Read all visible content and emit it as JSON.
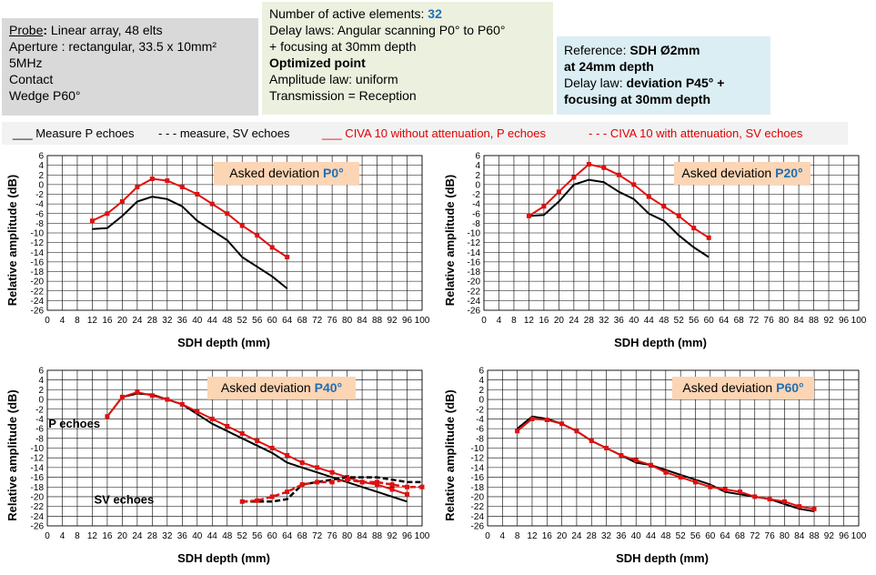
{
  "probe": {
    "label": "Probe",
    "colon": ": ",
    "type": "Linear array, 48 elts",
    "aperture": "Aperture : rectangular, 33.5 x 10mm²",
    "freq": "5MHz",
    "contact": "Contact",
    "wedge": "Wedge P60°"
  },
  "delay": {
    "active_label": "Number of active elements: ",
    "active_value": "32",
    "laws_l1": "Delay laws: Angular scanning P0° to P60°",
    "laws_l2": "+ focusing at 30mm depth",
    "optimized": "Optimized  point",
    "amp_law": "Amplitude law: uniform",
    "transmission": "Transmission = Reception"
  },
  "reference": {
    "prefix": "Reference: ",
    "sdh_l1": "SDH Ø2mm",
    "sdh_l2": "at 24mm depth",
    "delay_prefix": "Delay law: ",
    "delay_l1": "deviation P45° +",
    "delay_l2": "focusing at 30mm depth"
  },
  "legend": {
    "measure_p": "___ Measure P echoes",
    "measure_sv": "- - - measure, SV echoes",
    "civa_p": "___ CIVA 10 without attenuation, P echoes",
    "civa_sv": "- - - CIVA 10 with attenuation, SV echoes"
  },
  "colors": {
    "measure": "#000000",
    "civa": "#e01010",
    "asked_bg": "#fcd5b5",
    "asked_value": "#1f6fb5"
  },
  "chart_data": [
    {
      "type": "line",
      "xlabel": "SDH depth (mm)",
      "ylabel": "Relative amplitude (dB)",
      "xlim": [
        0,
        100
      ],
      "ylim": [
        -26,
        6
      ],
      "x_ticks": [
        0,
        4,
        8,
        12,
        16,
        20,
        24,
        28,
        32,
        36,
        40,
        44,
        48,
        52,
        56,
        60,
        64,
        68,
        72,
        76,
        80,
        84,
        88,
        92,
        96,
        100
      ],
      "y_ticks": [
        6,
        4,
        2,
        0,
        -2,
        -4,
        -6,
        -8,
        -10,
        -12,
        -14,
        -16,
        -18,
        -20,
        -22,
        -24,
        -26
      ],
      "grid": true,
      "annotation_prefix": "Asked deviation ",
      "annotation_value": "P0°",
      "series": [
        {
          "name": "Measure P echoes",
          "style": "solid-black",
          "points": [
            [
              12,
              -9.2
            ],
            [
              16,
              -9
            ],
            [
              20,
              -6.5
            ],
            [
              24,
              -3.5
            ],
            [
              28,
              -2.5
            ],
            [
              32,
              -3
            ],
            [
              36,
              -4.5
            ],
            [
              40,
              -7.5
            ],
            [
              44,
              -9.5
            ],
            [
              48,
              -11.5
            ],
            [
              52,
              -15
            ],
            [
              56,
              -17
            ],
            [
              60,
              -19
            ],
            [
              64,
              -21.5
            ]
          ]
        },
        {
          "name": "CIVA 10 without attenuation, P echoes",
          "style": "solid-red-markers",
          "points": [
            [
              12,
              -7.5
            ],
            [
              16,
              -6
            ],
            [
              20,
              -3.5
            ],
            [
              24,
              -0.5
            ],
            [
              28,
              1.2
            ],
            [
              32,
              0.8
            ],
            [
              36,
              -0.5
            ],
            [
              40,
              -2
            ],
            [
              44,
              -4
            ],
            [
              48,
              -6
            ],
            [
              52,
              -8.5
            ],
            [
              56,
              -10.5
            ],
            [
              60,
              -13
            ],
            [
              64,
              -15
            ]
          ]
        }
      ]
    },
    {
      "type": "line",
      "xlabel": "SDH depth (mm)",
      "ylabel": "Relative amplitude (dB)",
      "xlim": [
        0,
        100
      ],
      "ylim": [
        -26,
        6
      ],
      "x_ticks": [
        0,
        4,
        8,
        12,
        16,
        20,
        24,
        28,
        32,
        36,
        40,
        44,
        48,
        52,
        56,
        60,
        64,
        68,
        72,
        76,
        80,
        84,
        88,
        92,
        96,
        100
      ],
      "y_ticks": [
        6,
        4,
        2,
        0,
        -2,
        -4,
        -6,
        -8,
        -10,
        -12,
        -14,
        -16,
        -18,
        -20,
        -22,
        -24,
        -26
      ],
      "grid": true,
      "annotation_prefix": "Asked deviation ",
      "annotation_value": "P20°",
      "series": [
        {
          "name": "Measure P echoes",
          "style": "solid-black",
          "points": [
            [
              12,
              -6.5
            ],
            [
              16,
              -6.3
            ],
            [
              20,
              -3.5
            ],
            [
              24,
              0
            ],
            [
              28,
              1
            ],
            [
              32,
              0.5
            ],
            [
              36,
              -1.5
            ],
            [
              40,
              -3
            ],
            [
              44,
              -6
            ],
            [
              48,
              -7.5
            ],
            [
              52,
              -10.5
            ],
            [
              56,
              -13
            ],
            [
              60,
              -15
            ]
          ]
        },
        {
          "name": "CIVA 10 without attenuation, P echoes",
          "style": "solid-red-markers",
          "points": [
            [
              12,
              -6.5
            ],
            [
              16,
              -4.5
            ],
            [
              20,
              -1.5
            ],
            [
              24,
              1.5
            ],
            [
              28,
              4.2
            ],
            [
              32,
              3.5
            ],
            [
              36,
              2
            ],
            [
              40,
              0
            ],
            [
              44,
              -2.5
            ],
            [
              48,
              -4.5
            ],
            [
              52,
              -6.5
            ],
            [
              56,
              -9
            ],
            [
              60,
              -11
            ]
          ]
        }
      ]
    },
    {
      "type": "line",
      "xlabel": "SDH depth (mm)",
      "ylabel": "Relative amplitude (dB)",
      "xlim": [
        0,
        100
      ],
      "ylim": [
        -26,
        6
      ],
      "x_ticks": [
        0,
        4,
        8,
        12,
        16,
        20,
        24,
        28,
        32,
        36,
        40,
        44,
        48,
        52,
        56,
        60,
        64,
        68,
        72,
        76,
        80,
        84,
        88,
        92,
        96,
        100
      ],
      "y_ticks": [
        6,
        4,
        2,
        0,
        -2,
        -4,
        -6,
        -8,
        -10,
        -12,
        -14,
        -16,
        -18,
        -20,
        -22,
        -24,
        -26
      ],
      "grid": true,
      "annotation_prefix": "Asked deviation ",
      "annotation_value": "P40°",
      "labels": [
        {
          "text": "P echoes",
          "x": 0.3,
          "y": -5.8
        },
        {
          "text": "SV echoes",
          "x": 12.5,
          "y": -21.4
        }
      ],
      "series": [
        {
          "name": "Measure P echoes",
          "style": "solid-black",
          "points": [
            [
              16,
              -3.5
            ],
            [
              20,
              0.5
            ],
            [
              24,
              1.2
            ],
            [
              28,
              1
            ],
            [
              32,
              0
            ],
            [
              36,
              -1
            ],
            [
              40,
              -3
            ],
            [
              44,
              -5
            ],
            [
              48,
              -6.5
            ],
            [
              52,
              -8
            ],
            [
              56,
              -9.5
            ],
            [
              60,
              -11
            ],
            [
              64,
              -13
            ],
            [
              68,
              -14
            ],
            [
              72,
              -15
            ],
            [
              76,
              -16
            ],
            [
              80,
              -17
            ],
            [
              84,
              -18
            ],
            [
              88,
              -19
            ],
            [
              92,
              -20
            ],
            [
              96,
              -21
            ]
          ]
        },
        {
          "name": "CIVA 10 without attenuation, P echoes",
          "style": "solid-red-markers",
          "points": [
            [
              16,
              -3.5
            ],
            [
              20,
              0.5
            ],
            [
              24,
              1.5
            ],
            [
              28,
              0.8
            ],
            [
              32,
              0
            ],
            [
              36,
              -1
            ],
            [
              40,
              -2.5
            ],
            [
              44,
              -4
            ],
            [
              48,
              -5.5
            ],
            [
              52,
              -7
            ],
            [
              56,
              -8.5
            ],
            [
              60,
              -10
            ],
            [
              64,
              -11.5
            ],
            [
              68,
              -13
            ],
            [
              72,
              -14
            ],
            [
              76,
              -15
            ],
            [
              80,
              -16
            ],
            [
              84,
              -17
            ],
            [
              88,
              -17.5
            ],
            [
              92,
              -18.5
            ],
            [
              96,
              -19.5
            ]
          ]
        },
        {
          "name": "measure, SV echoes",
          "style": "dashed-black",
          "points": [
            [
              52,
              -21
            ],
            [
              56,
              -21
            ],
            [
              60,
              -21
            ],
            [
              64,
              -20.5
            ],
            [
              68,
              -17.5
            ],
            [
              72,
              -17
            ],
            [
              76,
              -16.5
            ],
            [
              80,
              -16
            ],
            [
              84,
              -16
            ],
            [
              88,
              -16
            ],
            [
              92,
              -16.5
            ],
            [
              96,
              -17
            ],
            [
              100,
              -17
            ]
          ]
        },
        {
          "name": "CIVA 10 with attenuation, SV echoes",
          "style": "dashed-red-markers",
          "points": [
            [
              52,
              -21
            ],
            [
              56,
              -20.8
            ],
            [
              60,
              -20
            ],
            [
              64,
              -19
            ],
            [
              68,
              -17.5
            ],
            [
              72,
              -17
            ],
            [
              76,
              -17
            ],
            [
              80,
              -16.5
            ],
            [
              84,
              -17
            ],
            [
              88,
              -17
            ],
            [
              92,
              -17.5
            ],
            [
              96,
              -18
            ],
            [
              100,
              -18
            ]
          ]
        }
      ]
    },
    {
      "type": "line",
      "xlabel": "SDH depth (mm)",
      "ylabel": "Relative amplitude (dB)",
      "xlim": [
        0,
        100
      ],
      "ylim": [
        -26,
        6
      ],
      "x_ticks": [
        0,
        4,
        8,
        12,
        16,
        20,
        24,
        28,
        32,
        36,
        40,
        44,
        48,
        52,
        56,
        60,
        64,
        68,
        72,
        76,
        80,
        84,
        88,
        92,
        96,
        100
      ],
      "y_ticks": [
        6,
        4,
        2,
        0,
        -2,
        -4,
        -6,
        -8,
        -10,
        -12,
        -14,
        -16,
        -18,
        -20,
        -22,
        -24,
        -26
      ],
      "grid": true,
      "annotation_prefix": "Asked deviation ",
      "annotation_value": "P60°",
      "series": [
        {
          "name": "Measure P echoes",
          "style": "solid-black",
          "points": [
            [
              8,
              -6
            ],
            [
              12,
              -3.5
            ],
            [
              16,
              -4
            ],
            [
              20,
              -5
            ],
            [
              24,
              -6.5
            ],
            [
              28,
              -8.5
            ],
            [
              32,
              -10
            ],
            [
              36,
              -11.5
            ],
            [
              40,
              -13
            ],
            [
              44,
              -13.5
            ],
            [
              48,
              -14.5
            ],
            [
              52,
              -15.5
            ],
            [
              56,
              -16.5
            ],
            [
              60,
              -17.5
            ],
            [
              64,
              -19
            ],
            [
              68,
              -19.5
            ],
            [
              72,
              -20
            ],
            [
              76,
              -20.5
            ],
            [
              80,
              -21.5
            ],
            [
              84,
              -22.5
            ],
            [
              88,
              -23
            ]
          ]
        },
        {
          "name": "CIVA 10 without attenuation, P echoes",
          "style": "solid-red-markers",
          "points": [
            [
              8,
              -6.5
            ],
            [
              12,
              -4
            ],
            [
              16,
              -4.2
            ],
            [
              20,
              -5
            ],
            [
              24,
              -6.5
            ],
            [
              28,
              -8.5
            ],
            [
              32,
              -10
            ],
            [
              36,
              -11.5
            ],
            [
              40,
              -12.5
            ],
            [
              44,
              -13.5
            ],
            [
              48,
              -15
            ],
            [
              52,
              -16
            ],
            [
              56,
              -17
            ],
            [
              60,
              -18
            ],
            [
              64,
              -18.5
            ],
            [
              68,
              -19
            ],
            [
              72,
              -20
            ],
            [
              76,
              -20.5
            ],
            [
              80,
              -21
            ],
            [
              84,
              -22
            ],
            [
              88,
              -22.5
            ]
          ]
        }
      ]
    }
  ]
}
